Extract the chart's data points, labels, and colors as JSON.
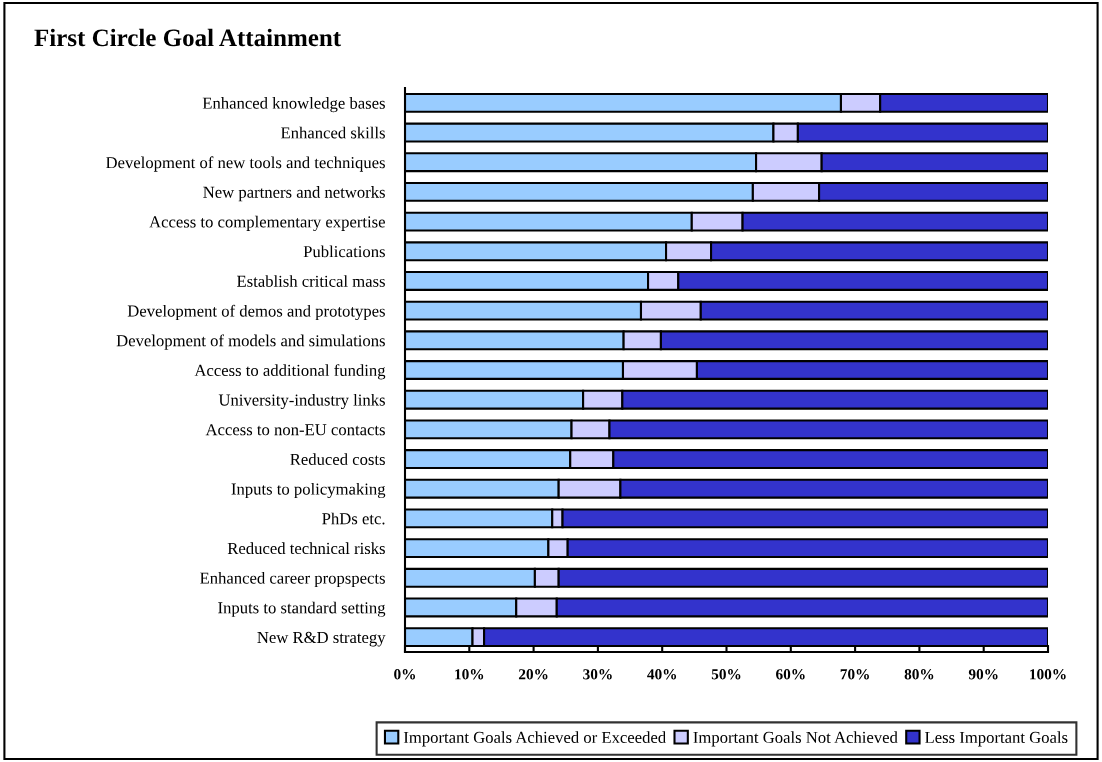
{
  "chart_data": {
    "type": "bar",
    "title": "First Circle Goal Attainment",
    "orientation": "horizontal",
    "stacked": true,
    "categories": [
      "Enhanced knowledge bases",
      "Enhanced skills",
      "Development of new tools and techniques",
      "New partners and networks",
      "Access to complementary expertise",
      "Publications",
      "Establish critical mass",
      "Development of demos and prototypes",
      "Development of models and simulations",
      "Access to additional funding",
      "University-industry links",
      "Access to non-EU contacts",
      "Reduced costs",
      "Inputs to policymaking",
      "PhDs etc.",
      "Reduced technical risks",
      "Enhanced career propspects",
      "Inputs to standard setting",
      "New R&D strategy"
    ],
    "series": [
      {
        "name": "Important Goals Achieved or Exceeded",
        "color": "#99ccff",
        "values": [
          67.8,
          57.3,
          54.6,
          54.1,
          44.6,
          40.6,
          37.8,
          36.7,
          34.0,
          33.9,
          27.7,
          25.9,
          25.7,
          23.9,
          22.9,
          22.3,
          20.2,
          17.3,
          10.5
        ]
      },
      {
        "name": "Important Goals Not Achieved",
        "color": "#ccccff",
        "values": [
          6.1,
          3.8,
          10.2,
          10.3,
          7.9,
          7.0,
          4.7,
          9.3,
          5.8,
          11.5,
          6.1,
          5.9,
          6.7,
          9.6,
          1.6,
          3.0,
          3.7,
          6.3,
          1.8
        ]
      },
      {
        "name": "Less Important Goals",
        "color": "#3333cc",
        "values": [
          26.1,
          38.9,
          35.2,
          35.6,
          47.5,
          52.4,
          57.5,
          54.0,
          60.2,
          54.6,
          66.2,
          68.2,
          67.6,
          66.5,
          75.5,
          74.7,
          76.1,
          76.4,
          87.7
        ]
      }
    ],
    "xlim": [
      0,
      100
    ],
    "xticks": [
      {
        "value": 0,
        "label": "0%"
      },
      {
        "value": 10,
        "label": "10%"
      },
      {
        "value": 20,
        "label": "20%"
      },
      {
        "value": 30,
        "label": "30%"
      },
      {
        "value": 40,
        "label": "40%"
      },
      {
        "value": 50,
        "label": "50%"
      },
      {
        "value": 60,
        "label": "60%"
      },
      {
        "value": 70,
        "label": "70%"
      },
      {
        "value": 80,
        "label": "80%"
      },
      {
        "value": 90,
        "label": "90%"
      },
      {
        "value": 100,
        "label": "100%"
      }
    ],
    "grid": false,
    "legend": "bottom"
  }
}
